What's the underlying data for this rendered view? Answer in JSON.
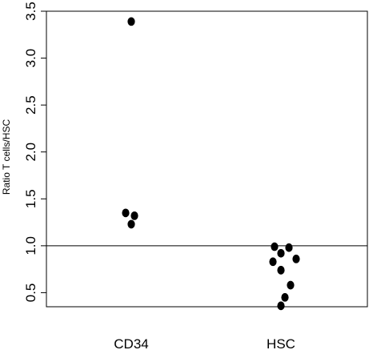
{
  "chart_data": {
    "type": "scatter",
    "title": "",
    "xlabel": "",
    "ylabel": "Ratio T cells/HSC",
    "ylim": [
      0.35,
      3.5
    ],
    "yticks": [
      0.5,
      1.0,
      1.5,
      2.0,
      2.5,
      3.0,
      3.5
    ],
    "ytick_labels": [
      "0.5",
      "1.0",
      "1.5",
      "2.0",
      "2.5",
      "3.0",
      "3.5"
    ],
    "categories": [
      "CD34",
      "HSC"
    ],
    "reference_line": 1.0,
    "grid": false,
    "point_color": "#000000",
    "series": [
      {
        "category": "CD34",
        "points": [
          {
            "offset": 0.0,
            "y": 3.39
          },
          {
            "offset": -0.07,
            "y": 1.35
          },
          {
            "offset": 0.04,
            "y": 1.32
          },
          {
            "offset": 0.0,
            "y": 1.23
          }
        ]
      },
      {
        "category": "HSC",
        "points": [
          {
            "offset": -0.08,
            "y": 0.99
          },
          {
            "offset": 0.1,
            "y": 0.98
          },
          {
            "offset": 0.0,
            "y": 0.92
          },
          {
            "offset": 0.19,
            "y": 0.86
          },
          {
            "offset": -0.1,
            "y": 0.83
          },
          {
            "offset": 0.0,
            "y": 0.74
          },
          {
            "offset": 0.12,
            "y": 0.58
          },
          {
            "offset": 0.05,
            "y": 0.45
          },
          {
            "offset": 0.0,
            "y": 0.36
          }
        ]
      }
    ]
  }
}
